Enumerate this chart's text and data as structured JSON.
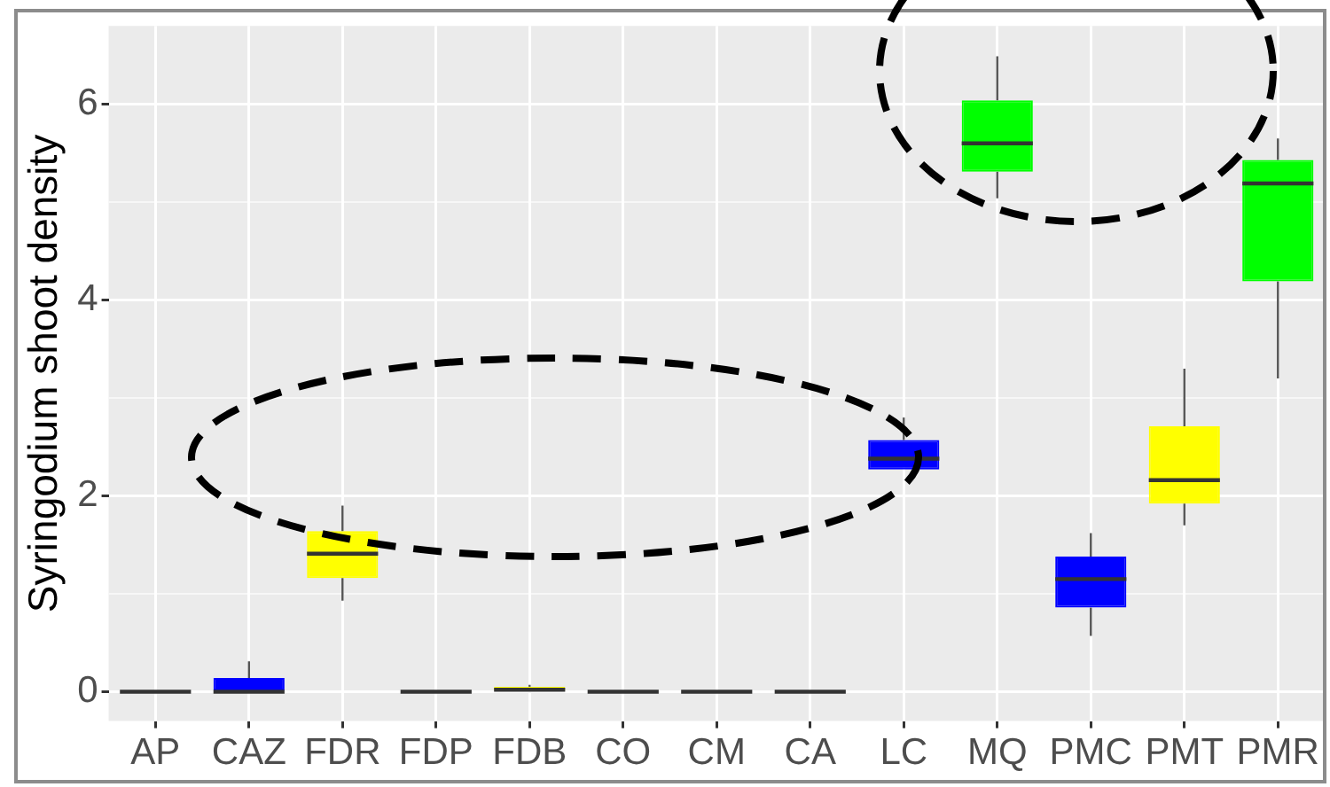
{
  "chart_data": {
    "type": "box",
    "ylabel": "Syringodium shoot density",
    "categories": [
      "AP",
      "CAZ",
      "FDR",
      "FDP",
      "FDB",
      "CO",
      "CM",
      "CA",
      "LC",
      "MQ",
      "PMC",
      "PMT",
      "PMR"
    ],
    "boxes": [
      {
        "low": 0,
        "q1": 0,
        "median": 0,
        "q3": 0,
        "high": 0
      },
      {
        "low": 0,
        "q1": 0,
        "median": 0,
        "q3": 0.14,
        "high": 0.31
      },
      {
        "low": 0.93,
        "q1": 1.16,
        "median": 1.41,
        "q3": 1.64,
        "high": 1.9
      },
      {
        "low": 0,
        "q1": 0,
        "median": 0,
        "q3": 0,
        "high": 0
      },
      {
        "low": 0,
        "q1": 0,
        "median": 0.02,
        "q3": 0.05,
        "high": 0.07
      },
      {
        "low": 0,
        "q1": 0,
        "median": 0,
        "q3": 0,
        "high": 0
      },
      {
        "low": 0,
        "q1": 0,
        "median": 0,
        "q3": 0,
        "high": 0
      },
      {
        "low": 0,
        "q1": 0,
        "median": 0,
        "q3": 0,
        "high": 0
      },
      {
        "low": 2.27,
        "q1": 2.27,
        "median": 2.38,
        "q3": 2.57,
        "high": 2.8
      },
      {
        "low": 5.04,
        "q1": 5.31,
        "median": 5.6,
        "q3": 6.04,
        "high": 6.49
      },
      {
        "low": 0.57,
        "q1": 0.86,
        "median": 1.15,
        "q3": 1.38,
        "high": 1.62
      },
      {
        "low": 1.7,
        "q1": 1.92,
        "median": 2.16,
        "q3": 2.71,
        "high": 3.3
      },
      {
        "low": 3.2,
        "q1": 4.19,
        "median": 5.19,
        "q3": 5.43,
        "high": 5.65
      }
    ],
    "colors": [
      "#333333",
      "#0000ff",
      "#ffff00",
      "#333333",
      "#ffff00",
      "#333333",
      "#333333",
      "#333333",
      "#0000ff",
      "#00ff00",
      "#0000ff",
      "#ffff00",
      "#00ff00"
    ],
    "ylim": [
      -0.3,
      6.8
    ],
    "yticks": [
      0,
      2,
      4,
      6
    ],
    "grid": true
  }
}
